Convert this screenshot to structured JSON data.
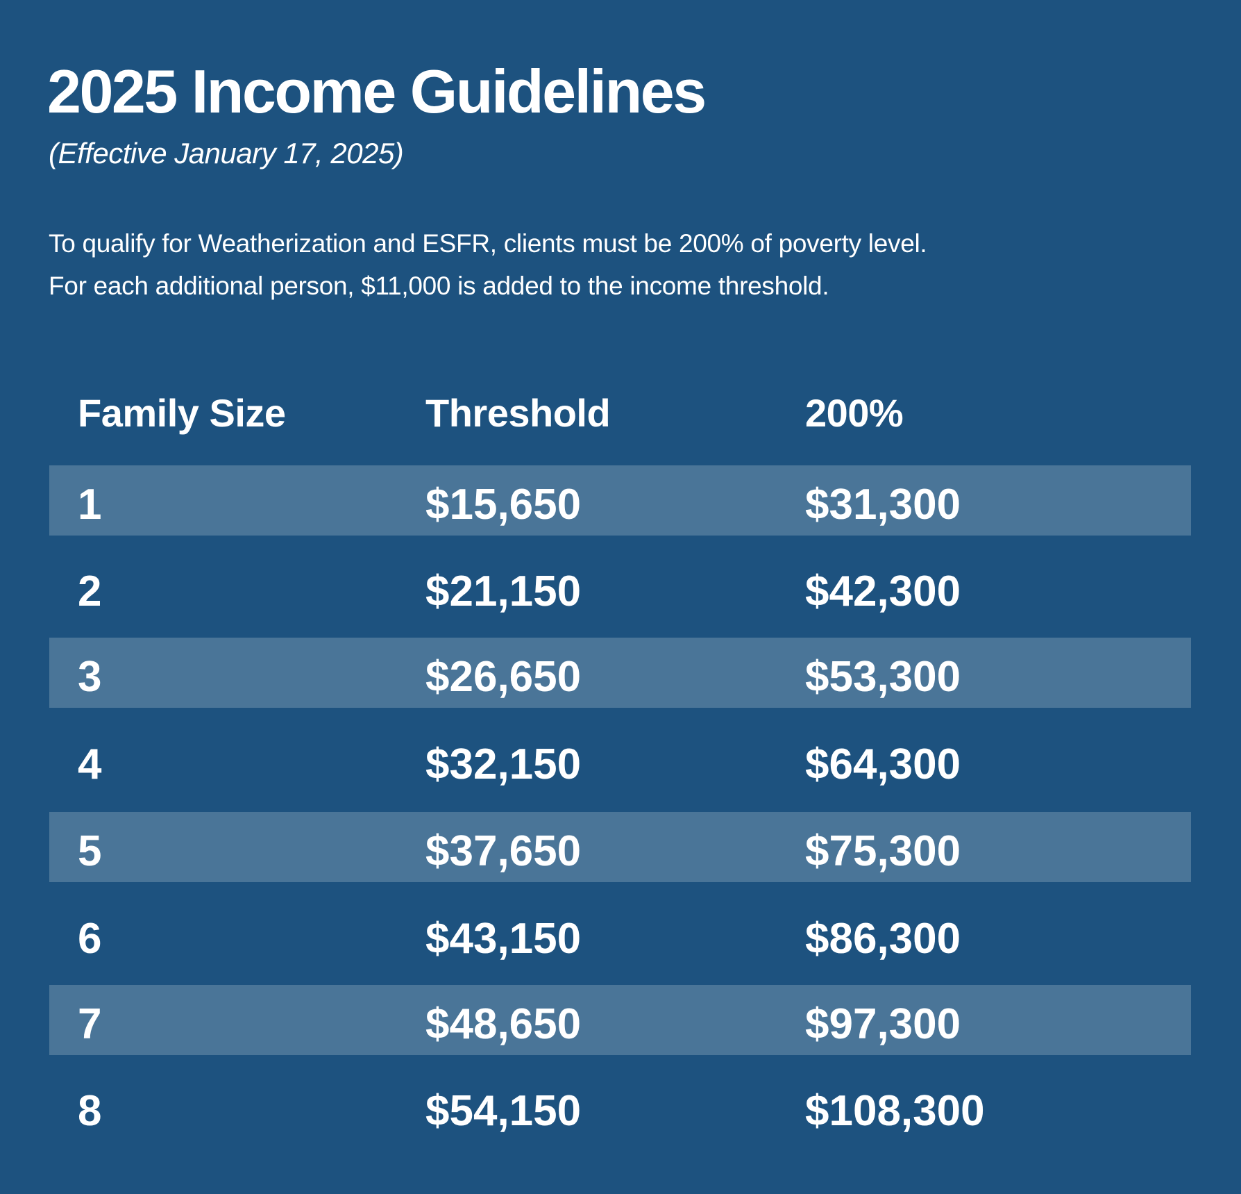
{
  "header": {
    "title": "2025 Income Guidelines",
    "subtitle": "(Effective January 17, 2025)"
  },
  "description": {
    "line1": "To qualify for Weatherization and ESFR, clients must be 200% of poverty level.",
    "line2": "For each additional person, $11,000 is added to the income threshold."
  },
  "colors": {
    "background": "#1d527f",
    "stripe": "#4a7598",
    "text": "#ffffff"
  },
  "table": {
    "columns": [
      "Family Size",
      "Threshold",
      "200%"
    ],
    "rows": [
      [
        "1",
        "$15,650",
        "$31,300"
      ],
      [
        "2",
        "$21,150",
        "$42,300"
      ],
      [
        "3",
        "$26,650",
        "$53,300"
      ],
      [
        "4",
        "$32,150",
        "$64,300"
      ],
      [
        "5",
        "$37,650",
        "$75,300"
      ],
      [
        "6",
        "$43,150",
        "$86,300"
      ],
      [
        "7",
        "$48,650",
        "$97,300"
      ],
      [
        "8",
        "$54,150",
        "$108,300"
      ]
    ]
  }
}
